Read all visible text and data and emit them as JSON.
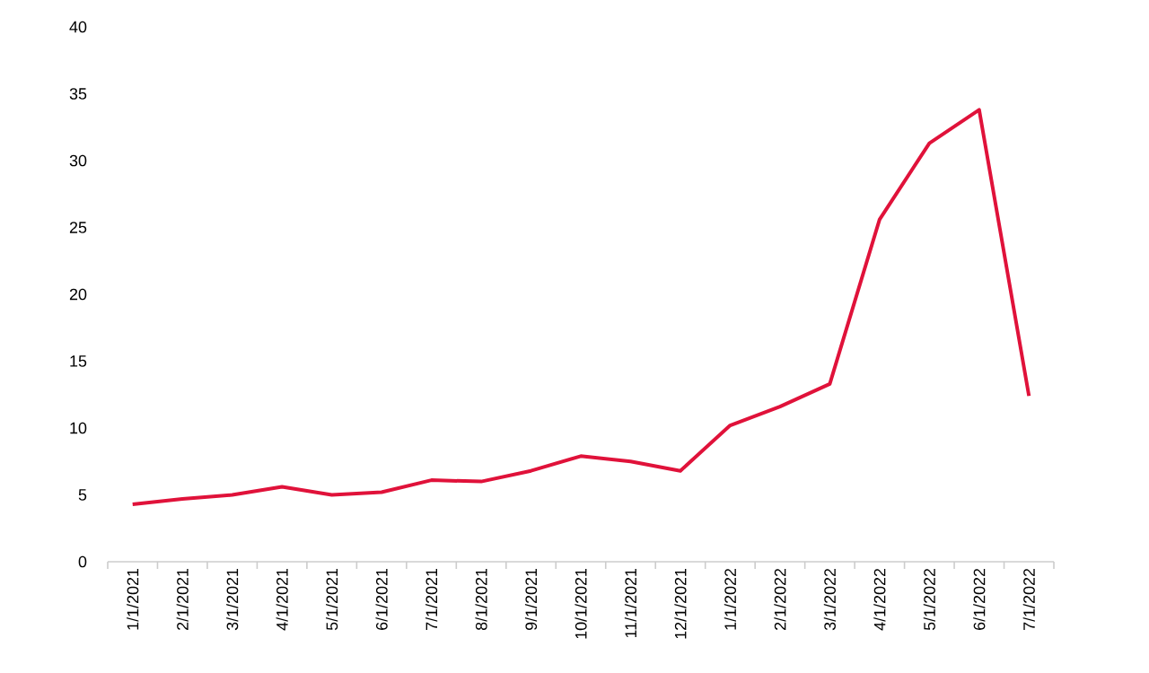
{
  "chart_data": {
    "type": "line",
    "categories": [
      "1/1/2021",
      "2/1/2021",
      "3/1/2021",
      "4/1/2021",
      "5/1/2021",
      "6/1/2021",
      "7/1/2021",
      "8/1/2021",
      "9/1/2021",
      "10/1/2021",
      "11/1/2021",
      "12/1/2021",
      "1/1/2022",
      "2/1/2022",
      "3/1/2022",
      "4/1/2022",
      "5/1/2022",
      "6/1/2022",
      "7/1/2022"
    ],
    "series": [
      {
        "color": "#e0123a",
        "values": [
          4.3,
          4.7,
          5.0,
          5.6,
          5.0,
          5.2,
          6.1,
          6.0,
          6.8,
          7.9,
          7.5,
          6.8,
          10.2,
          11.6,
          13.3,
          25.6,
          31.3,
          33.8,
          12.4
        ]
      }
    ],
    "ylim": [
      0,
      40
    ],
    "yticks": [
      0,
      5,
      10,
      15,
      20,
      25,
      30,
      35,
      40
    ],
    "grid": false,
    "marker": "none",
    "line_style": "solid"
  }
}
